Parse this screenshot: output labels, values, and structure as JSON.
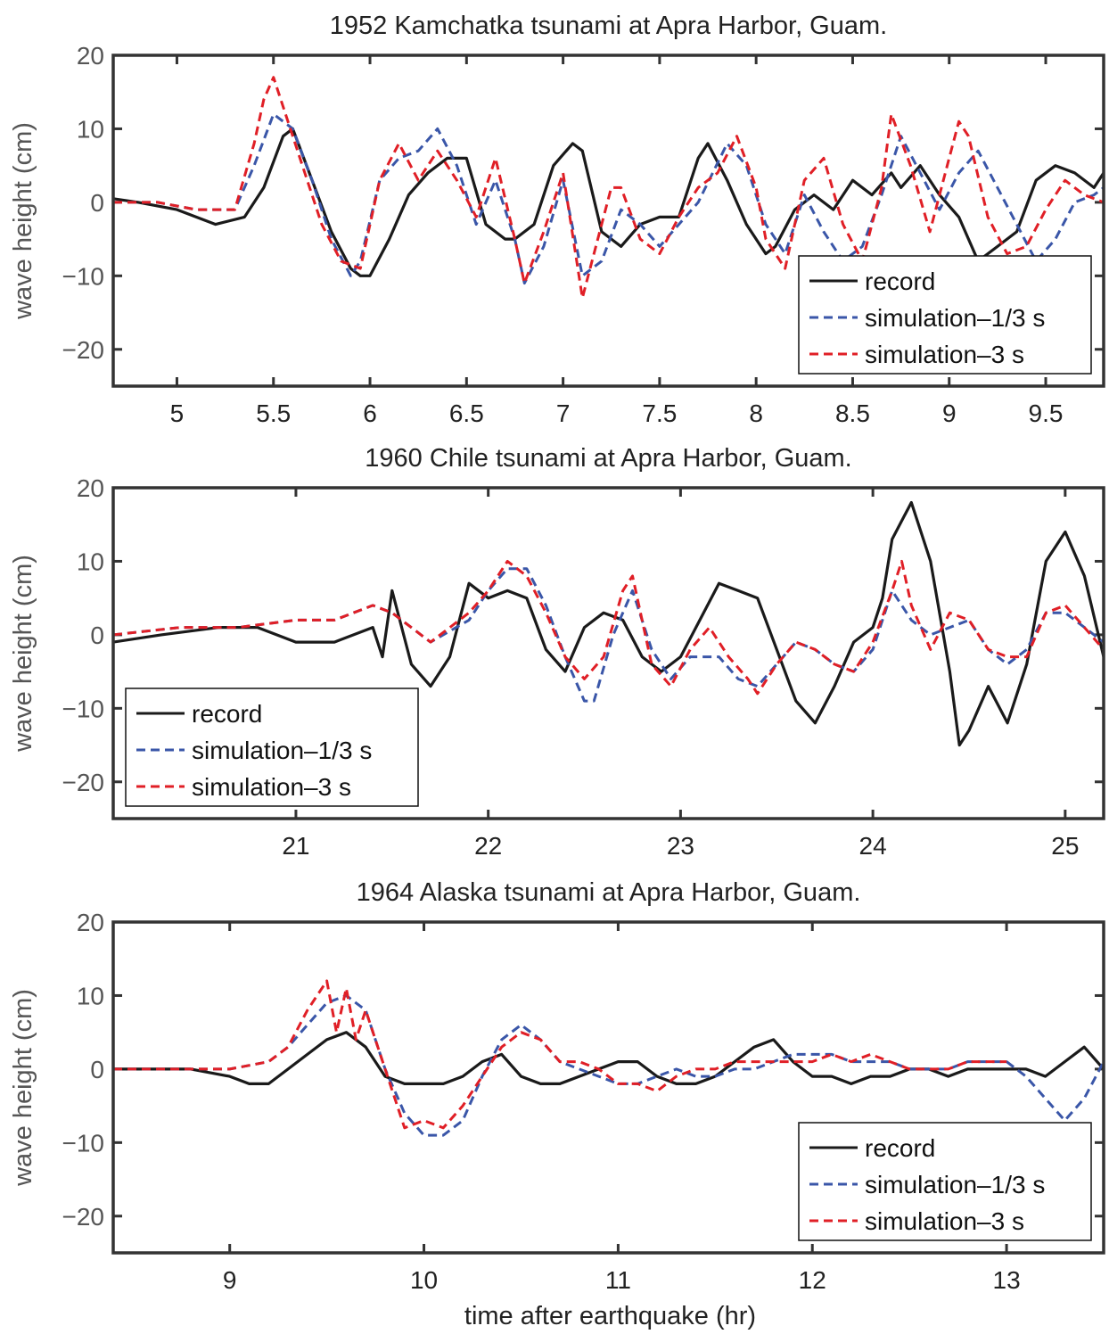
{
  "colors": {
    "record": "#1a1a1a",
    "sim13": "#3a56a8",
    "sim3": "#e01f26",
    "axis": "#333333",
    "tick_text": "#555555"
  },
  "chart_data": [
    {
      "type": "line",
      "title": "1952 Kamchatka tsunami at Apra Harbor, Guam.",
      "ylabel": "wave height (cm)",
      "xlabel": "",
      "xlim": [
        4.67,
        9.8
      ],
      "ylim": [
        -25,
        20
      ],
      "xticks": [
        5,
        5.5,
        6,
        6.5,
        7,
        7.5,
        8,
        8.5,
        9,
        9.5
      ],
      "xtick_labels": [
        "5",
        "5.5",
        "6",
        "6.5",
        "7",
        "7.5",
        "8",
        "8.5",
        "9",
        "9.5"
      ],
      "yticks": [
        -20,
        -10,
        0,
        10,
        20
      ],
      "ytick_labels": [
        "−20",
        "−10",
        "0",
        "10",
        "20"
      ],
      "legend": "bottom-right",
      "series": [
        {
          "name": "record",
          "style": "solid",
          "color": "record",
          "x": [
            4.67,
            4.8,
            5.0,
            5.2,
            5.35,
            5.45,
            5.55,
            5.6,
            5.7,
            5.8,
            5.9,
            5.95,
            6.0,
            6.1,
            6.2,
            6.3,
            6.4,
            6.5,
            6.6,
            6.7,
            6.75,
            6.85,
            6.95,
            7.05,
            7.1,
            7.2,
            7.3,
            7.4,
            7.5,
            7.6,
            7.7,
            7.75,
            7.85,
            7.95,
            8.05,
            8.1,
            8.2,
            8.3,
            8.4,
            8.5,
            8.6,
            8.7,
            8.75,
            8.85,
            8.95,
            9.05,
            9.15,
            9.25,
            9.35,
            9.45,
            9.55,
            9.65,
            9.75,
            9.8
          ],
          "y": [
            0.5,
            0,
            -1,
            -3,
            -2,
            2,
            9,
            10,
            3,
            -4,
            -9,
            -10,
            -10,
            -5,
            1,
            4,
            6,
            6,
            -3,
            -5,
            -5,
            -3,
            5,
            8,
            7,
            -4,
            -6,
            -3,
            -2,
            -2,
            6,
            8,
            3,
            -3,
            -7,
            -6,
            -1,
            1,
            -1,
            3,
            1,
            4,
            2,
            5,
            1,
            -2,
            -8,
            -6,
            -4,
            3,
            5,
            4,
            2,
            4
          ]
        },
        {
          "name": "simulation–1/3 s",
          "style": "dashed",
          "color": "sim13",
          "x": [
            4.67,
            4.9,
            5.1,
            5.3,
            5.4,
            5.5,
            5.6,
            5.7,
            5.8,
            5.9,
            5.95,
            6.05,
            6.15,
            6.25,
            6.35,
            6.45,
            6.55,
            6.65,
            6.75,
            6.8,
            6.9,
            7.0,
            7.1,
            7.2,
            7.3,
            7.4,
            7.5,
            7.6,
            7.7,
            7.85,
            7.95,
            8.05,
            8.15,
            8.25,
            8.35,
            8.45,
            8.55,
            8.65,
            8.75,
            8.85,
            8.95,
            9.05,
            9.15,
            9.25,
            9.35,
            9.45,
            9.55,
            9.65,
            9.75,
            9.8
          ],
          "y": [
            0,
            0,
            -1,
            -1,
            5,
            12,
            10,
            3,
            -5,
            -10,
            -8,
            3,
            6,
            7,
            10,
            5,
            -3,
            3,
            -5,
            -11,
            -6,
            3,
            -10,
            -8,
            -1,
            -3,
            -6,
            -3,
            0,
            8,
            5,
            -3,
            -7,
            1,
            -4,
            -8,
            -6,
            1,
            9,
            4,
            -1,
            4,
            7,
            2,
            -3,
            -8,
            -5,
            0,
            1,
            2
          ]
        },
        {
          "name": "simulation–3 s",
          "style": "dashed",
          "color": "sim3",
          "x": [
            4.67,
            4.9,
            5.1,
            5.3,
            5.4,
            5.45,
            5.5,
            5.55,
            5.65,
            5.75,
            5.85,
            5.95,
            6.05,
            6.15,
            6.25,
            6.35,
            6.45,
            6.55,
            6.65,
            6.75,
            6.8,
            6.9,
            7.0,
            7.1,
            7.15,
            7.25,
            7.3,
            7.4,
            7.5,
            7.6,
            7.7,
            7.8,
            7.9,
            8.0,
            8.05,
            8.15,
            8.25,
            8.35,
            8.45,
            8.55,
            8.65,
            8.7,
            8.8,
            8.9,
            9.0,
            9.05,
            9.1,
            9.2,
            9.3,
            9.4,
            9.5,
            9.6,
            9.7,
            9.8
          ],
          "y": [
            0,
            0,
            -1,
            -1,
            8,
            14,
            17,
            13,
            5,
            -3,
            -8,
            -9,
            3,
            8,
            3,
            7,
            3,
            -2,
            6,
            -5,
            -11,
            -4,
            4,
            -13,
            -8,
            2,
            2,
            -5,
            -7,
            -2,
            2,
            4,
            9,
            2,
            -5,
            -9,
            3,
            6,
            -3,
            -8,
            2,
            12,
            5,
            -4,
            6,
            11,
            9,
            -2,
            -7,
            -6,
            -1,
            3,
            1,
            0
          ]
        }
      ]
    },
    {
      "type": "line",
      "title": "1960 Chile tsunami at Apra Harbor, Guam.",
      "ylabel": "wave height (cm)",
      "xlabel": "",
      "xlim": [
        20.05,
        25.2
      ],
      "ylim": [
        -25,
        20
      ],
      "xticks": [
        21,
        22,
        23,
        24,
        25
      ],
      "xtick_labels": [
        "21",
        "22",
        "23",
        "24",
        "25"
      ],
      "yticks": [
        -20,
        -10,
        0,
        10,
        20
      ],
      "ytick_labels": [
        "−20",
        "−10",
        "0",
        "10",
        "20"
      ],
      "legend": "bottom-left",
      "series": [
        {
          "name": "record",
          "style": "solid",
          "color": "record",
          "x": [
            20.05,
            20.3,
            20.6,
            20.8,
            21.0,
            21.2,
            21.4,
            21.45,
            21.5,
            21.6,
            21.7,
            21.8,
            21.9,
            22.0,
            22.1,
            22.2,
            22.3,
            22.4,
            22.5,
            22.6,
            22.7,
            22.8,
            22.9,
            23.0,
            23.1,
            23.2,
            23.3,
            23.4,
            23.5,
            23.6,
            23.7,
            23.8,
            23.9,
            24.0,
            24.05,
            24.1,
            24.2,
            24.3,
            24.4,
            24.45,
            24.5,
            24.6,
            24.7,
            24.8,
            24.9,
            25.0,
            25.1,
            25.2
          ],
          "y": [
            -1,
            0,
            1,
            1,
            -1,
            -1,
            1,
            -3,
            6,
            -4,
            -7,
            -3,
            7,
            5,
            6,
            5,
            -2,
            -5,
            1,
            3,
            2,
            -3,
            -5,
            -3,
            2,
            7,
            6,
            5,
            -2,
            -9,
            -12,
            -7,
            -1,
            1,
            5,
            13,
            18,
            10,
            -5,
            -15,
            -13,
            -7,
            -12,
            -4,
            10,
            14,
            8,
            -3
          ]
        },
        {
          "name": "simulation–1/3 s",
          "style": "dashed",
          "color": "sim13",
          "x": [
            20.05,
            20.4,
            20.7,
            21.0,
            21.2,
            21.4,
            21.5,
            21.7,
            21.9,
            22.0,
            22.1,
            22.2,
            22.3,
            22.4,
            22.5,
            22.55,
            22.65,
            22.75,
            22.85,
            22.95,
            23.05,
            23.2,
            23.3,
            23.4,
            23.5,
            23.6,
            23.7,
            23.8,
            23.9,
            24.0,
            24.1,
            24.2,
            24.3,
            24.4,
            24.5,
            24.6,
            24.7,
            24.8,
            24.9,
            25.0,
            25.1,
            25.2
          ],
          "y": [
            0,
            1,
            1,
            2,
            2,
            4,
            3,
            -1,
            2,
            6,
            9,
            9,
            4,
            -3,
            -9,
            -9,
            0,
            6,
            -2,
            -6,
            -3,
            -3,
            -6,
            -7,
            -4,
            -1,
            -2,
            -4,
            -5,
            -2,
            6,
            2,
            0,
            1,
            2,
            -2,
            -4,
            -2,
            3,
            3,
            1,
            -1
          ]
        },
        {
          "name": "simulation–3 s",
          "style": "dashed",
          "color": "sim3",
          "x": [
            20.05,
            20.4,
            20.7,
            21.0,
            21.2,
            21.4,
            21.5,
            21.7,
            21.9,
            22.0,
            22.1,
            22.2,
            22.3,
            22.4,
            22.5,
            22.6,
            22.7,
            22.75,
            22.85,
            22.95,
            23.05,
            23.15,
            23.25,
            23.35,
            23.4,
            23.5,
            23.6,
            23.7,
            23.8,
            23.9,
            24.0,
            24.1,
            24.15,
            24.2,
            24.3,
            24.4,
            24.5,
            24.6,
            24.7,
            24.8,
            24.9,
            25.0,
            25.1,
            25.2
          ],
          "y": [
            0,
            1,
            1,
            2,
            2,
            4,
            3,
            -1,
            3,
            6,
            10,
            8,
            3,
            -3,
            -6,
            -3,
            6,
            8,
            -4,
            -7,
            -2,
            1,
            -3,
            -6,
            -8,
            -4,
            -1,
            -2,
            -4,
            -5,
            -1,
            6,
            10,
            4,
            -2,
            3,
            2,
            -2,
            -3,
            -3,
            3,
            4,
            1,
            -2
          ]
        }
      ]
    },
    {
      "type": "line",
      "title": "1964 Alaska tsunami at Apra Harbor, Guam.",
      "ylabel": "wave height (cm)",
      "xlabel": "time after earthquake (hr)",
      "xlim": [
        8.4,
        13.5
      ],
      "ylim": [
        -25,
        20
      ],
      "xticks": [
        9,
        10,
        11,
        12,
        13
      ],
      "xtick_labels": [
        "9",
        "10",
        "11",
        "12",
        "13"
      ],
      "yticks": [
        -20,
        -10,
        0,
        10,
        20
      ],
      "ytick_labels": [
        "−20",
        "−10",
        "0",
        "10",
        "20"
      ],
      "legend": "bottom-right",
      "series": [
        {
          "name": "record",
          "style": "solid",
          "color": "record",
          "x": [
            8.4,
            8.6,
            8.8,
            9.0,
            9.1,
            9.2,
            9.3,
            9.4,
            9.5,
            9.6,
            9.7,
            9.8,
            9.9,
            10.0,
            10.1,
            10.2,
            10.3,
            10.4,
            10.5,
            10.6,
            10.7,
            10.8,
            10.9,
            11.0,
            11.1,
            11.2,
            11.3,
            11.4,
            11.5,
            11.6,
            11.7,
            11.8,
            11.9,
            12.0,
            12.1,
            12.2,
            12.3,
            12.4,
            12.5,
            12.6,
            12.7,
            12.8,
            12.9,
            13.0,
            13.1,
            13.2,
            13.3,
            13.4,
            13.5
          ],
          "y": [
            0,
            0,
            0,
            -1,
            -2,
            -2,
            0,
            2,
            4,
            5,
            3,
            -1,
            -2,
            -2,
            -2,
            -1,
            1,
            2,
            -1,
            -2,
            -2,
            -1,
            0,
            1,
            1,
            -1,
            -2,
            -2,
            -1,
            1,
            3,
            4,
            1,
            -1,
            -1,
            -2,
            -1,
            -1,
            0,
            0,
            -1,
            0,
            0,
            0,
            0,
            -1,
            1,
            3,
            0
          ]
        },
        {
          "name": "simulation–1/3 s",
          "style": "dashed",
          "color": "sim13",
          "x": [
            8.4,
            8.7,
            9.0,
            9.2,
            9.3,
            9.4,
            9.5,
            9.6,
            9.7,
            9.8,
            9.9,
            10.0,
            10.1,
            10.2,
            10.3,
            10.4,
            10.5,
            10.6,
            10.7,
            10.8,
            10.9,
            11.0,
            11.1,
            11.2,
            11.3,
            11.4,
            11.5,
            11.6,
            11.7,
            11.8,
            11.9,
            12.0,
            12.1,
            12.2,
            12.3,
            12.4,
            12.5,
            12.6,
            12.7,
            12.8,
            12.9,
            13.0,
            13.1,
            13.2,
            13.3,
            13.4,
            13.5
          ],
          "y": [
            0,
            0,
            0,
            1,
            3,
            6,
            9,
            10,
            8,
            0,
            -6,
            -9,
            -9,
            -7,
            -1,
            4,
            6,
            4,
            1,
            0,
            -1,
            -2,
            -2,
            -1,
            0,
            -1,
            -1,
            0,
            0,
            1,
            2,
            2,
            2,
            1,
            1,
            1,
            0,
            0,
            0,
            1,
            1,
            1,
            -1,
            -4,
            -7,
            -4,
            1
          ]
        },
        {
          "name": "simulation–3 s",
          "style": "dashed",
          "color": "sim3",
          "x": [
            8.4,
            8.7,
            9.0,
            9.2,
            9.3,
            9.4,
            9.5,
            9.55,
            9.6,
            9.65,
            9.7,
            9.8,
            9.9,
            10.0,
            10.1,
            10.2,
            10.3,
            10.4,
            10.5,
            10.6,
            10.7,
            10.8,
            10.9,
            11.0,
            11.1,
            11.2,
            11.3,
            11.4,
            11.5,
            11.6,
            11.7,
            11.8,
            11.9,
            12.0,
            12.1,
            12.2,
            12.3,
            12.4,
            12.5,
            12.6,
            12.7,
            12.8,
            12.9,
            13.0
          ],
          "y": [
            0,
            0,
            0,
            1,
            3,
            8,
            12,
            5,
            11,
            4,
            8,
            0,
            -8,
            -7,
            -8,
            -5,
            -1,
            3,
            5,
            4,
            1,
            1,
            0,
            -2,
            -2,
            -3,
            -1,
            0,
            0,
            1,
            1,
            1,
            1,
            1,
            2,
            1,
            2,
            1,
            0,
            0,
            0,
            1,
            1,
            1
          ]
        }
      ]
    }
  ]
}
